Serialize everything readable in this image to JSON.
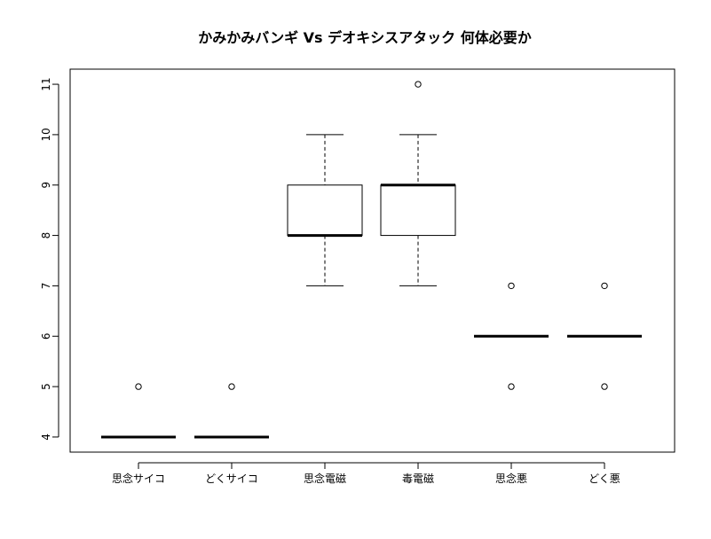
{
  "chart_data": {
    "type": "boxplot",
    "title": "かみかみバンギ Vs デオキシスアタック 何体必要か",
    "xlabel": "",
    "ylabel": "",
    "ylim": [
      3.7,
      11.3
    ],
    "yticks": [
      4,
      5,
      6,
      7,
      8,
      9,
      10,
      11
    ],
    "grid": false,
    "categories": [
      "思念サイコ",
      "どくサイコ",
      "思念電磁",
      "毒電磁",
      "思念悪",
      "どく悪"
    ],
    "boxes": [
      {
        "category": "思念サイコ",
        "whisker_low": 4,
        "q1": 4,
        "median": 4,
        "q3": 4,
        "whisker_high": 4,
        "outliers": [
          5
        ]
      },
      {
        "category": "どくサイコ",
        "whisker_low": 4,
        "q1": 4,
        "median": 4,
        "q3": 4,
        "whisker_high": 4,
        "outliers": [
          5
        ]
      },
      {
        "category": "思念電磁",
        "whisker_low": 7,
        "q1": 8,
        "median": 8,
        "q3": 9,
        "whisker_high": 10,
        "outliers": []
      },
      {
        "category": "毒電磁",
        "whisker_low": 7,
        "q1": 8,
        "median": 9,
        "q3": 9,
        "whisker_high": 10,
        "outliers": [
          11
        ]
      },
      {
        "category": "思念悪",
        "whisker_low": 6,
        "q1": 6,
        "median": 6,
        "q3": 6,
        "whisker_high": 6,
        "outliers": [
          7,
          5
        ]
      },
      {
        "category": "どく悪",
        "whisker_low": 6,
        "q1": 6,
        "median": 6,
        "q3": 6,
        "whisker_high": 6,
        "outliers": [
          7,
          5
        ]
      }
    ]
  }
}
